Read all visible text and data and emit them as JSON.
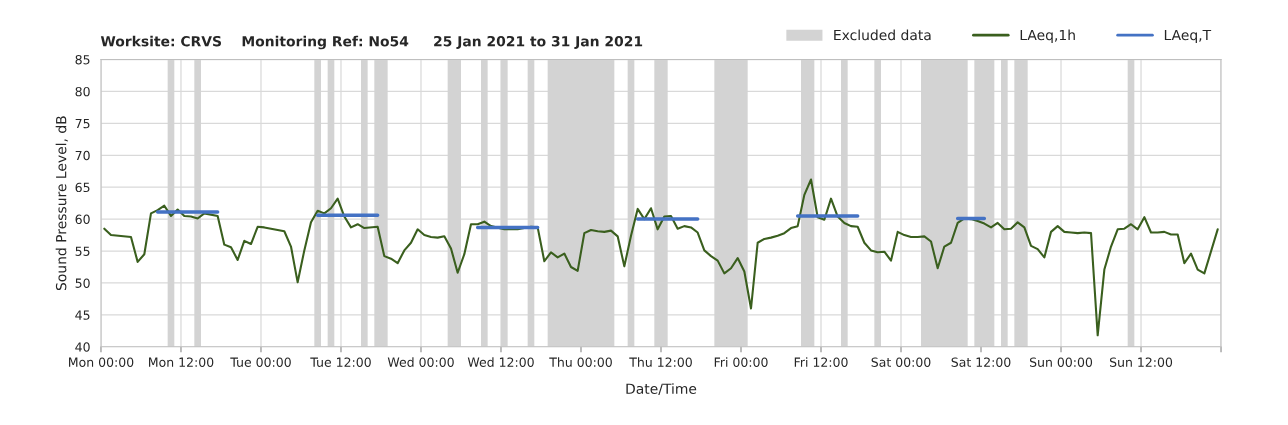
{
  "chart_data": {
    "type": "line",
    "title": "Worksite: CRVS    Monitoring Ref: No54     25 Jan 2021 to 31 Jan 2021",
    "xlabel": "Date/Time",
    "ylabel": "Sound Pressure Level, dB",
    "series": [
      {
        "name": "LAeq,1h",
        "color": "#3a5f1e",
        "x": [
          "2021-01-25T00:30",
          "2021-01-25T01:30",
          "2021-01-25T04:30",
          "2021-01-25T05:30",
          "2021-01-25T06:30",
          "2021-01-25T07:30",
          "2021-01-25T08:30",
          "2021-01-25T09:30",
          "2021-01-25T10:30",
          "2021-01-25T11:30",
          "2021-01-25T12:30",
          "2021-01-25T13:30",
          "2021-01-25T14:30",
          "2021-01-25T15:30",
          "2021-01-25T17:30",
          "2021-01-25T18:30",
          "2021-01-25T19:30",
          "2021-01-25T20:30",
          "2021-01-25T21:30",
          "2021-01-25T22:30",
          "2021-01-25T23:30",
          "2021-01-26T00:30",
          "2021-01-26T03:30",
          "2021-01-26T04:30",
          "2021-01-26T05:30",
          "2021-01-26T06:30",
          "2021-01-26T07:30",
          "2021-01-26T08:30",
          "2021-01-26T09:30",
          "2021-01-26T10:30",
          "2021-01-26T11:30",
          "2021-01-26T12:30",
          "2021-01-26T13:30",
          "2021-01-26T14:30",
          "2021-01-26T15:30",
          "2021-01-26T17:30",
          "2021-01-26T18:30",
          "2021-01-26T19:30",
          "2021-01-26T20:30",
          "2021-01-26T21:30",
          "2021-01-26T22:30",
          "2021-01-26T23:30",
          "2021-01-27T00:30",
          "2021-01-27T01:30",
          "2021-01-27T02:30",
          "2021-01-27T03:30",
          "2021-01-27T04:30",
          "2021-01-27T05:30",
          "2021-01-27T06:30",
          "2021-01-27T07:30",
          "2021-01-27T08:30",
          "2021-01-27T09:30",
          "2021-01-27T10:30",
          "2021-01-27T12:30",
          "2021-01-27T14:30",
          "2021-01-27T16:30",
          "2021-01-27T17:30",
          "2021-01-27T18:30",
          "2021-01-27T19:30",
          "2021-01-27T20:30",
          "2021-01-27T21:30",
          "2021-01-27T22:30",
          "2021-01-27T23:30",
          "2021-01-28T00:30",
          "2021-01-28T01:30",
          "2021-01-28T02:30",
          "2021-01-28T03:30",
          "2021-01-28T04:30",
          "2021-01-28T05:30",
          "2021-01-28T06:30",
          "2021-01-28T07:30",
          "2021-01-28T08:30",
          "2021-01-28T09:30",
          "2021-01-28T10:30",
          "2021-01-28T11:30",
          "2021-01-28T12:30",
          "2021-01-28T13:30",
          "2021-01-28T14:30",
          "2021-01-28T15:30",
          "2021-01-28T16:30",
          "2021-01-28T17:30",
          "2021-01-28T18:30",
          "2021-01-28T19:30",
          "2021-01-28T20:30",
          "2021-01-28T21:30",
          "2021-01-28T22:30",
          "2021-01-28T23:30",
          "2021-01-29T00:30",
          "2021-01-29T01:30",
          "2021-01-29T02:30",
          "2021-01-29T03:30",
          "2021-01-29T04:30",
          "2021-01-29T05:30",
          "2021-01-29T06:30",
          "2021-01-29T07:30",
          "2021-01-29T08:30",
          "2021-01-29T09:30",
          "2021-01-29T10:30",
          "2021-01-29T11:30",
          "2021-01-29T12:30",
          "2021-01-29T13:30",
          "2021-01-29T14:30",
          "2021-01-29T15:30",
          "2021-01-29T16:30",
          "2021-01-29T17:30",
          "2021-01-29T18:30",
          "2021-01-29T19:30",
          "2021-01-29T20:30",
          "2021-01-29T21:30",
          "2021-01-29T22:30",
          "2021-01-29T23:30",
          "2021-01-30T00:30",
          "2021-01-30T01:30",
          "2021-01-30T02:30",
          "2021-01-30T03:30",
          "2021-01-30T04:30",
          "2021-01-30T05:30",
          "2021-01-30T06:30",
          "2021-01-30T07:30",
          "2021-01-30T08:30",
          "2021-01-30T09:30",
          "2021-01-30T10:30",
          "2021-01-30T11:30",
          "2021-01-30T12:30",
          "2021-01-30T13:30",
          "2021-01-30T14:30",
          "2021-01-30T15:30",
          "2021-01-30T16:30",
          "2021-01-30T17:30",
          "2021-01-30T18:30",
          "2021-01-30T19:30",
          "2021-01-30T20:30",
          "2021-01-30T21:30",
          "2021-01-30T22:30",
          "2021-01-30T23:30",
          "2021-01-31T00:30",
          "2021-01-31T01:30",
          "2021-01-31T02:30",
          "2021-01-31T03:30",
          "2021-01-31T04:30",
          "2021-01-31T05:30",
          "2021-01-31T06:30",
          "2021-01-31T07:30",
          "2021-01-31T08:30",
          "2021-01-31T09:30",
          "2021-01-31T10:30",
          "2021-01-31T11:30",
          "2021-01-31T12:30",
          "2021-01-31T13:30",
          "2021-01-31T14:30",
          "2021-01-31T15:30",
          "2021-01-31T16:30",
          "2021-01-31T17:30",
          "2021-01-31T18:30",
          "2021-01-31T19:30",
          "2021-01-31T20:30",
          "2021-01-31T21:30",
          "2021-01-31T23:30"
        ],
        "values": [
          58.5,
          57.5,
          57.2,
          53.3,
          54.5,
          60.9,
          61.4,
          62.1,
          60.5,
          61.5,
          60.5,
          60.4,
          60.1,
          60.9,
          60.5,
          56.0,
          55.6,
          53.6,
          56.6,
          56.1,
          58.8,
          58.7,
          58.1,
          55.7,
          50.1,
          55.1,
          59.5,
          61.3,
          60.9,
          61.7,
          63.2,
          60.4,
          58.7,
          59.2,
          58.6,
          58.8,
          54.2,
          53.8,
          53.1,
          55.1,
          56.3,
          58.4,
          57.5,
          57.2,
          57.1,
          57.3,
          55.4,
          51.6,
          54.5,
          59.2,
          59.2,
          59.6,
          58.9,
          58.4,
          58.4,
          58.8,
          58.7,
          53.4,
          54.8,
          54.0,
          54.6,
          52.5,
          51.9,
          57.8,
          58.3,
          58.1,
          58.0,
          58.2,
          57.3,
          52.6,
          57.4,
          61.6,
          60.0,
          61.7,
          58.4,
          60.4,
          60.5,
          58.5,
          58.9,
          58.7,
          57.9,
          55.1,
          54.2,
          53.5,
          51.5,
          52.3,
          53.9,
          51.8,
          46.0,
          56.3,
          56.9,
          57.1,
          57.4,
          57.8,
          58.6,
          58.9,
          63.8,
          66.2,
          60.3,
          59.9,
          63.2,
          60.4,
          59.4,
          58.9,
          58.8,
          56.3,
          55.1,
          54.8,
          54.9,
          53.5,
          58.0,
          57.5,
          57.2,
          57.2,
          57.3,
          56.5,
          52.3,
          55.7,
          56.3,
          59.4,
          60.1,
          60.0,
          59.7,
          59.3,
          58.7,
          59.4,
          58.4,
          58.5,
          59.5,
          58.7,
          55.8,
          55.3,
          54.0,
          58.0,
          58.9,
          58.0,
          57.9,
          57.8,
          57.9,
          57.8,
          41.8,
          52.1,
          55.7,
          58.4,
          58.5,
          59.2,
          58.4,
          60.3,
          57.9,
          57.9,
          58.0,
          57.6,
          57.6,
          53.1,
          54.6,
          52.1,
          51.5,
          58.4
        ]
      },
      {
        "name": "LAeq,T",
        "color": "#4472c4",
        "x": [
          "2021-01-25T08:30",
          "2021-01-25T17:30",
          "2021-01-26T01:00",
          "2021-01-26T08:30",
          "2021-01-26T17:30",
          "2021-01-27T02:00",
          "2021-01-27T08:30",
          "2021-01-27T17:30",
          "2021-01-28T01:00",
          "2021-01-28T08:30",
          "2021-01-28T17:30",
          "2021-01-29T01:00",
          "2021-01-29T08:30",
          "2021-01-29T17:30",
          "2021-01-30T01:00",
          "2021-01-30T08:30",
          "2021-01-30T12:30"
        ],
        "values": [
          61.1,
          61.1,
          null,
          60.6,
          60.6,
          null,
          58.7,
          58.7,
          null,
          60.0,
          60.0,
          null,
          60.5,
          60.5,
          null,
          60.1,
          60.1
        ]
      }
    ],
    "bands": [
      {
        "axis": "x",
        "from": "2021-01-25T10:00",
        "to": "2021-01-25T11:00",
        "color": "#d3d3d3",
        "label": "Excluded data"
      },
      {
        "axis": "x",
        "from": "2021-01-25T14:00",
        "to": "2021-01-25T15:00",
        "color": "#d3d3d3"
      },
      {
        "axis": "x",
        "from": "2021-01-26T08:00",
        "to": "2021-01-26T09:00",
        "color": "#d3d3d3"
      },
      {
        "axis": "x",
        "from": "2021-01-26T10:00",
        "to": "2021-01-26T11:00",
        "color": "#d3d3d3"
      },
      {
        "axis": "x",
        "from": "2021-01-26T15:00",
        "to": "2021-01-26T16:00",
        "color": "#d3d3d3"
      },
      {
        "axis": "x",
        "from": "2021-01-26T17:00",
        "to": "2021-01-26T19:00",
        "color": "#d3d3d3"
      },
      {
        "axis": "x",
        "from": "2021-01-27T04:00",
        "to": "2021-01-27T06:00",
        "color": "#d3d3d3"
      },
      {
        "axis": "x",
        "from": "2021-01-27T09:00",
        "to": "2021-01-27T10:00",
        "color": "#d3d3d3"
      },
      {
        "axis": "x",
        "from": "2021-01-27T12:00",
        "to": "2021-01-27T13:00",
        "color": "#d3d3d3"
      },
      {
        "axis": "x",
        "from": "2021-01-27T16:00",
        "to": "2021-01-27T17:00",
        "color": "#d3d3d3"
      },
      {
        "axis": "x",
        "from": "2021-01-27T19:00",
        "to": "2021-01-28T05:00",
        "color": "#d3d3d3"
      },
      {
        "axis": "x",
        "from": "2021-01-28T07:00",
        "to": "2021-01-28T08:00",
        "color": "#d3d3d3"
      },
      {
        "axis": "x",
        "from": "2021-01-28T11:00",
        "to": "2021-01-28T13:00",
        "color": "#d3d3d3"
      },
      {
        "axis": "x",
        "from": "2021-01-28T20:00",
        "to": "2021-01-29T01:00",
        "color": "#d3d3d3"
      },
      {
        "axis": "x",
        "from": "2021-01-29T09:00",
        "to": "2021-01-29T11:00",
        "color": "#d3d3d3"
      },
      {
        "axis": "x",
        "from": "2021-01-29T15:00",
        "to": "2021-01-29T16:00",
        "color": "#d3d3d3"
      },
      {
        "axis": "x",
        "from": "2021-01-29T20:00",
        "to": "2021-01-29T21:00",
        "color": "#d3d3d3"
      },
      {
        "axis": "x",
        "from": "2021-01-30T03:00",
        "to": "2021-01-30T10:00",
        "color": "#d3d3d3"
      },
      {
        "axis": "x",
        "from": "2021-01-30T11:00",
        "to": "2021-01-30T14:00",
        "color": "#d3d3d3"
      },
      {
        "axis": "x",
        "from": "2021-01-30T15:00",
        "to": "2021-01-30T16:00",
        "color": "#d3d3d3"
      },
      {
        "axis": "x",
        "from": "2021-01-30T17:00",
        "to": "2021-01-30T19:00",
        "color": "#d3d3d3"
      },
      {
        "axis": "x",
        "from": "2021-01-31T10:00",
        "to": "2021-01-31T11:00",
        "color": "#d3d3d3"
      }
    ],
    "xlim": [
      "2021-01-25T00:00",
      "2021-02-01T00:00"
    ],
    "ylim": [
      40,
      85
    ],
    "xticks": [
      {
        "value": "2021-01-25T00:00",
        "label": "Mon 00:00"
      },
      {
        "value": "2021-01-25T12:00",
        "label": "Mon 12:00"
      },
      {
        "value": "2021-01-26T00:00",
        "label": "Tue 00:00"
      },
      {
        "value": "2021-01-26T12:00",
        "label": "Tue 12:00"
      },
      {
        "value": "2021-01-27T00:00",
        "label": "Wed 00:00"
      },
      {
        "value": "2021-01-27T12:00",
        "label": "Wed 12:00"
      },
      {
        "value": "2021-01-28T00:00",
        "label": "Thu 00:00"
      },
      {
        "value": "2021-01-28T12:00",
        "label": "Thu 12:00"
      },
      {
        "value": "2021-01-29T00:00",
        "label": "Fri 00:00"
      },
      {
        "value": "2021-01-29T12:00",
        "label": "Fri 12:00"
      },
      {
        "value": "2021-01-30T00:00",
        "label": "Sat 00:00"
      },
      {
        "value": "2021-01-30T12:00",
        "label": "Sat 12:00"
      },
      {
        "value": "2021-01-31T00:00",
        "label": "Sun 00:00"
      },
      {
        "value": "2021-01-31T12:00",
        "label": "Sun 12:00"
      },
      {
        "value": "2021-02-01T00:00",
        "label": null
      }
    ],
    "yticks": [
      40,
      45,
      50,
      55,
      60,
      65,
      70,
      75,
      80,
      85
    ],
    "grid": true,
    "legend": "top right",
    "marker": "none",
    "line_style": "solid"
  }
}
